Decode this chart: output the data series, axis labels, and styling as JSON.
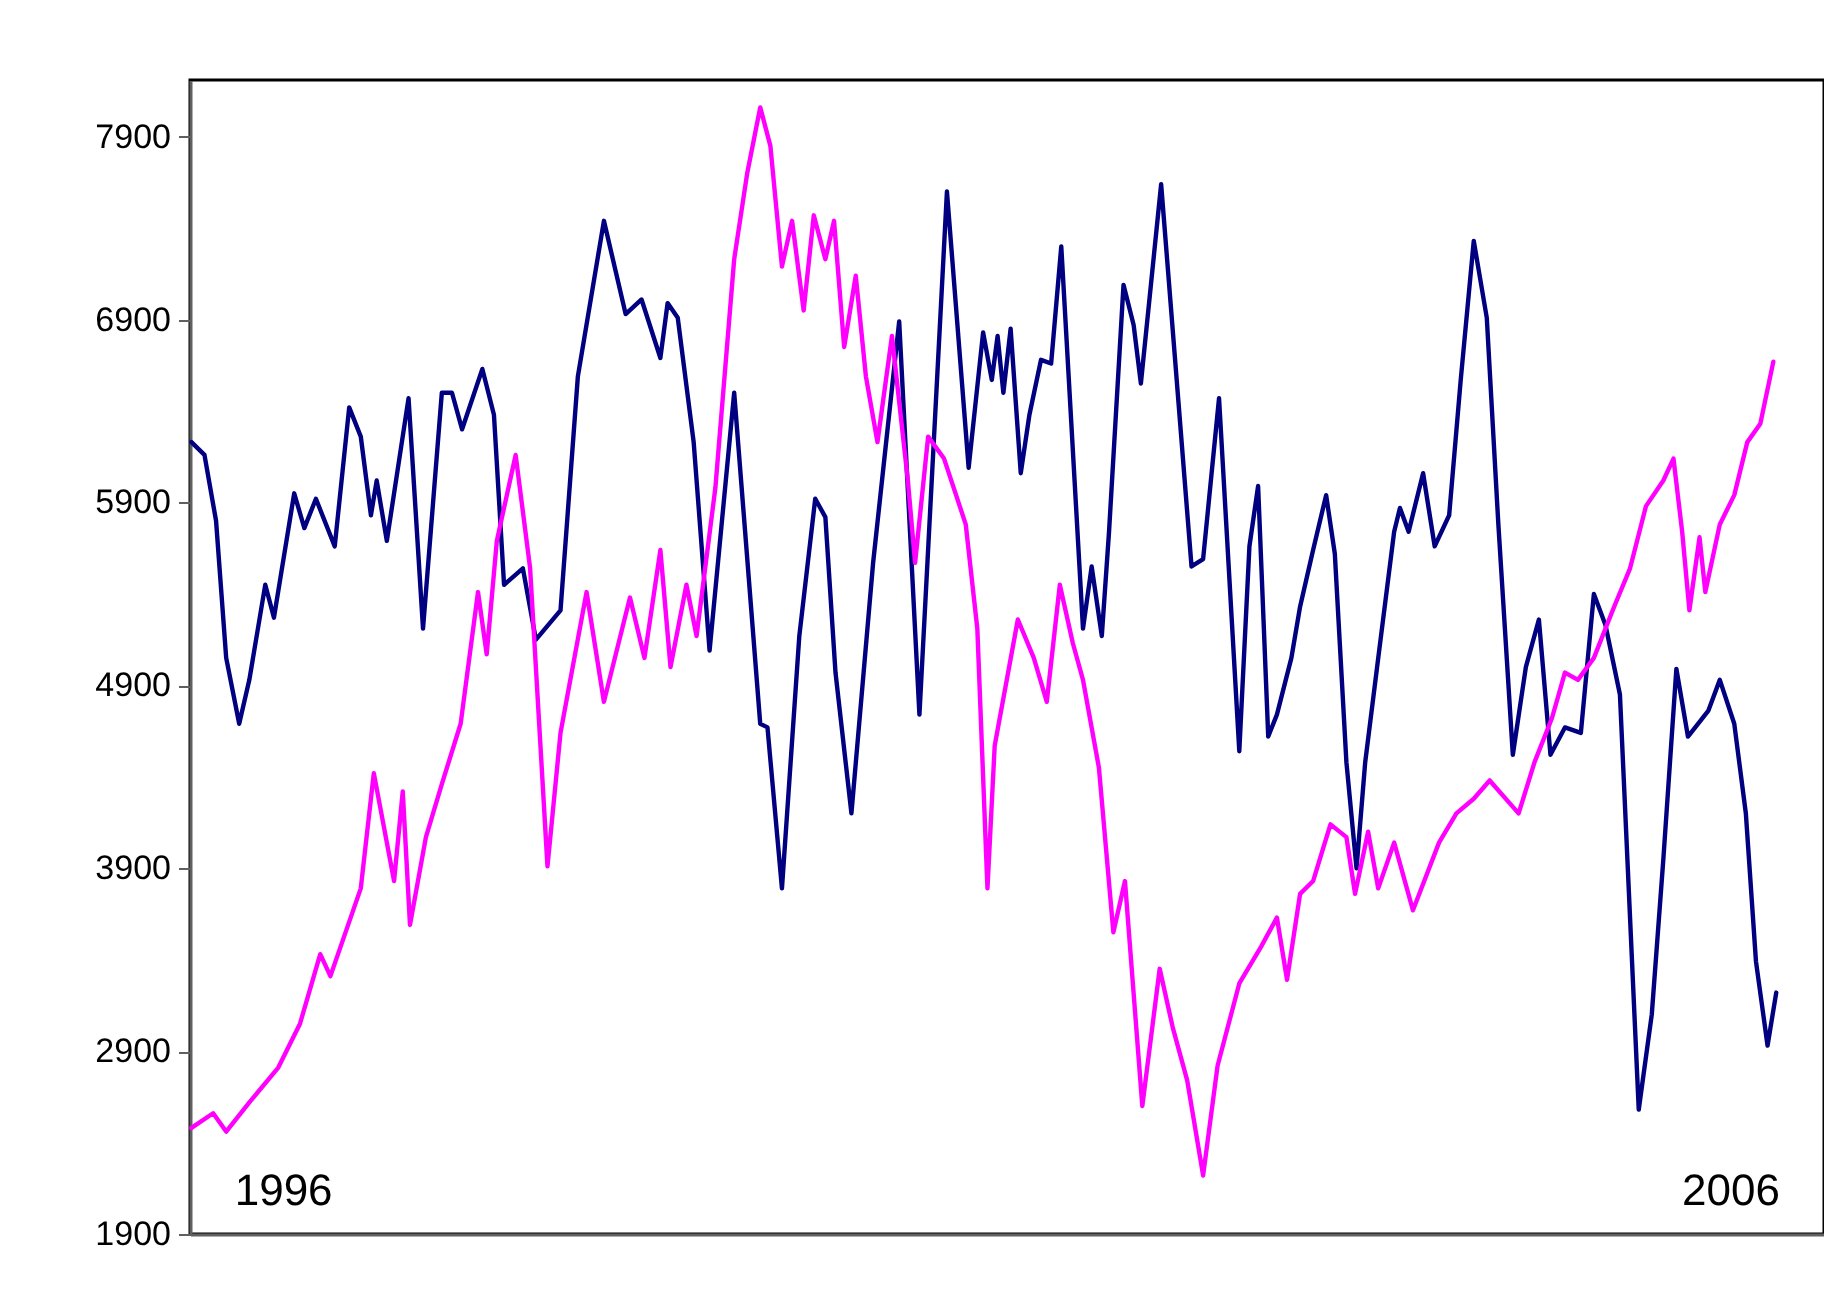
{
  "chart_data": {
    "type": "line",
    "xlim": [
      1995.36,
      2006.65
    ],
    "xticks": [
      1996,
      2006
    ],
    "ylim": [
      1900,
      8210
    ],
    "yticks": [
      1900,
      2900,
      3900,
      4900,
      5900,
      6900,
      7900
    ],
    "grid": false,
    "marker": "none",
    "line_style": "solid",
    "series": [
      {
        "color": "#000080",
        "x": [
          1995.37,
          1995.46,
          1995.54,
          1995.61,
          1995.7,
          1995.77,
          1995.88,
          1995.94,
          1996.08,
          1996.15,
          1996.23,
          1996.36,
          1996.46,
          1996.54,
          1996.61,
          1996.65,
          1996.72,
          1996.87,
          1996.97,
          1997.1,
          1997.17,
          1997.24,
          1997.38,
          1997.46,
          1997.53,
          1997.66,
          1997.75,
          1997.92,
          1998.04,
          1998.22,
          1998.37,
          1998.48,
          1998.61,
          1998.66,
          1998.73,
          1998.84,
          1998.95,
          1999.12,
          1999.3,
          1999.35,
          1999.45,
          1999.57,
          1999.68,
          1999.75,
          1999.82,
          1999.93,
          2000.08,
          2000.26,
          2000.4,
          2000.59,
          2000.74,
          2000.84,
          2000.9,
          2000.94,
          2000.98,
          2001.03,
          2001.1,
          2001.16,
          2001.24,
          2001.31,
          2001.38,
          2001.53,
          2001.59,
          2001.66,
          2001.71,
          2001.81,
          2001.88,
          2001.93,
          2002.07,
          2002.28,
          2002.36,
          2002.47,
          2002.61,
          2002.68,
          2002.74,
          2002.81,
          2002.87,
          2002.97,
          2003.03,
          2003.12,
          2003.21,
          2003.27,
          2003.35,
          2003.42,
          2003.48,
          2003.57,
          2003.68,
          2003.72,
          2003.78,
          2003.88,
          2003.96,
          2004.06,
          2004.14,
          2004.23,
          2004.32,
          2004.4,
          2004.5,
          2004.59,
          2004.68,
          2004.76,
          2004.86,
          2004.97,
          2005.06,
          2005.14,
          2005.24,
          2005.37,
          2005.46,
          2005.54,
          2005.63,
          2005.71,
          2005.85,
          2005.93,
          2006.03,
          2006.11,
          2006.18,
          2006.26,
          2006.32
        ],
        "values": [
          6230,
          6160,
          5800,
          5050,
          4690,
          4930,
          5450,
          5270,
          5950,
          5760,
          5920,
          5660,
          6420,
          6260,
          5830,
          6020,
          5690,
          6470,
          5210,
          6500,
          6500,
          6300,
          6630,
          6380,
          5450,
          5540,
          5150,
          5310,
          6590,
          7440,
          6930,
          7010,
          6690,
          6990,
          6910,
          6230,
          5090,
          6500,
          4690,
          4670,
          3790,
          5170,
          5920,
          5820,
          4970,
          4200,
          5570,
          6890,
          4740,
          7600,
          6090,
          6830,
          6570,
          6810,
          6500,
          6850,
          6060,
          6380,
          6680,
          6660,
          7300,
          5210,
          5550,
          5170,
          5740,
          7090,
          6870,
          6550,
          7640,
          5550,
          5590,
          6470,
          4540,
          5660,
          5990,
          4620,
          4740,
          5050,
          5330,
          5640,
          5940,
          5620,
          4480,
          3900,
          4480,
          5050,
          5740,
          5870,
          5740,
          6060,
          5660,
          5830,
          6570,
          7330,
          6910,
          5780,
          4520,
          5000,
          5260,
          4520,
          4670,
          4640,
          5400,
          5230,
          4850,
          2580,
          3100,
          3950,
          4990,
          4620,
          4760,
          4930,
          4690,
          4200,
          3390,
          2930,
          3220
        ]
      },
      {
        "color": "#ff00ff",
        "x": [
          1995.37,
          1995.52,
          1995.61,
          1995.77,
          1995.97,
          1996.12,
          1996.26,
          1996.33,
          1996.54,
          1996.63,
          1996.77,
          1996.83,
          1996.88,
          1996.99,
          1997.1,
          1997.23,
          1997.35,
          1997.41,
          1997.48,
          1997.61,
          1997.71,
          1997.83,
          1997.92,
          1998.1,
          1998.22,
          1998.4,
          1998.5,
          1998.61,
          1998.68,
          1998.79,
          1998.86,
          1998.99,
          1999.12,
          1999.21,
          1999.3,
          1999.37,
          1999.45,
          1999.52,
          1999.6,
          1999.67,
          1999.75,
          1999.81,
          1999.88,
          1999.96,
          2000.03,
          2000.11,
          2000.21,
          2000.32,
          2000.37,
          2000.46,
          2000.57,
          2000.72,
          2000.8,
          2000.87,
          2000.92,
          2001.08,
          2001.19,
          2001.28,
          2001.37,
          2001.46,
          2001.53,
          2001.64,
          2001.74,
          2001.82,
          2001.94,
          2002.06,
          2002.15,
          2002.25,
          2002.36,
          2002.46,
          2002.61,
          2002.76,
          2002.87,
          2002.94,
          2003.03,
          2003.12,
          2003.24,
          2003.35,
          2003.41,
          2003.5,
          2003.57,
          2003.68,
          2003.81,
          2003.99,
          2004.11,
          2004.23,
          2004.34,
          2004.54,
          2004.65,
          2004.77,
          2004.86,
          2004.95,
          2005.06,
          2005.2,
          2005.31,
          2005.42,
          2005.54,
          2005.61,
          2005.67,
          2005.72,
          2005.79,
          2005.83,
          2005.93,
          2006.03,
          2006.12,
          2006.21,
          2006.3
        ],
        "values": [
          2480,
          2560,
          2460,
          2620,
          2810,
          3050,
          3430,
          3310,
          3790,
          4420,
          3830,
          4320,
          3590,
          4070,
          4360,
          4690,
          5410,
          5070,
          5690,
          6160,
          5540,
          3910,
          4640,
          5410,
          4810,
          5380,
          5050,
          5640,
          5000,
          5450,
          5170,
          5980,
          7230,
          7700,
          8060,
          7850,
          7190,
          7440,
          6950,
          7470,
          7230,
          7440,
          6750,
          7140,
          6590,
          6230,
          6810,
          6020,
          5570,
          6260,
          6140,
          5780,
          5210,
          3790,
          4570,
          5260,
          5050,
          4810,
          5450,
          5130,
          4930,
          4450,
          3550,
          3830,
          2600,
          3350,
          3030,
          2740,
          2220,
          2820,
          3270,
          3470,
          3630,
          3290,
          3760,
          3830,
          4140,
          4070,
          3760,
          4100,
          3790,
          4040,
          3670,
          4040,
          4200,
          4280,
          4380,
          4200,
          4480,
          4720,
          4970,
          4930,
          5050,
          5330,
          5540,
          5880,
          6020,
          6140,
          5740,
          5310,
          5710,
          5410,
          5780,
          5940,
          6230,
          6330,
          6670
        ]
      }
    ]
  }
}
